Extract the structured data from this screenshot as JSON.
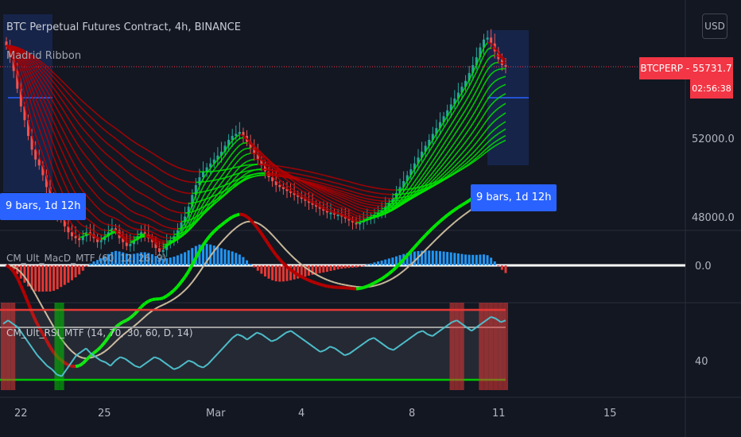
{
  "title": "BTC Perpetual Futures Contract, 4h, BINANCE",
  "indicator_main": "Madrid Ribbon",
  "indicator_macd": "CM_Ult_MacD_MTF (60, 12, 26, 9)",
  "indicator_rsi": "CM_Ult_RSI_MTF (14, 70, 30, 60, D, 14)",
  "currency_button": "USD",
  "price_tag": "BTCPERP - 55731.7",
  "countdown": "02:56:38",
  "measure_left": "9 bars, 1d 12h",
  "measure_right": "9 bars, 1d 12h",
  "colors": {
    "background": "#131722",
    "up": "#26a69a",
    "down": "#ef5350",
    "ribbon_up": "#00e600",
    "ribbon_down": "#b40000",
    "macd_hist": "#2196f3",
    "rsi_line": "#4dbdca",
    "price_tag": "#f23645",
    "measure": "#2962ff"
  },
  "chart_data": [
    {
      "type": "candlestick",
      "title": "BTC Perpetual Futures Contract, 4h, BINANCE",
      "x_ticks": [
        "22",
        "25",
        "Mar",
        "4",
        "8",
        "11",
        "15"
      ],
      "y_ticks": [
        "52000.0",
        "48000.0"
      ],
      "last_price": 55731.7,
      "close_approx": [
        56800,
        56200,
        55500,
        54600,
        53700,
        53000,
        52200,
        51500,
        51000,
        50700,
        50200,
        49600,
        48900,
        48500,
        48200,
        48000,
        47600,
        47300,
        47100,
        47000,
        46900,
        47100,
        47300,
        47200,
        47000,
        46800,
        46900,
        47100,
        47300,
        47500,
        47400,
        47000,
        46800,
        46600,
        46700,
        46900,
        47100,
        47300,
        47200,
        47000,
        46800,
        46500,
        46300,
        46400,
        46700,
        46900,
        47100,
        47400,
        47800,
        48100,
        48600,
        49200,
        49700,
        50100,
        50400,
        50600,
        50800,
        51000,
        51200,
        51400,
        51700,
        52000,
        52200,
        52300,
        52400,
        52200,
        51900,
        51600,
        51300,
        51000,
        50700,
        50400,
        50100,
        49900,
        49700,
        49600,
        49500,
        49400,
        49300,
        49200,
        49100,
        49000,
        48900,
        48800,
        48700,
        48600,
        48500,
        48400,
        48300,
        48300,
        48200,
        48200,
        48100,
        48000,
        47900,
        47800,
        47700,
        47800,
        47900,
        48000,
        48100,
        48200,
        48300,
        48400,
        48600,
        48800,
        49000,
        49300,
        49600,
        49900,
        50200,
        50500,
        50800,
        51100,
        51400,
        51700,
        52000,
        52300,
        52600,
        52900,
        53200,
        53500,
        53800,
        54100,
        54400,
        54700,
        55000,
        55400,
        55800,
        56200,
        56700,
        57100,
        57200,
        56900,
        56500,
        56100,
        55800,
        55731.7
      ]
    },
    {
      "type": "line",
      "title": "CM_Ult_MacD_MTF (60, 12, 26, 9)",
      "y_ticks": [
        "0.0"
      ]
    },
    {
      "type": "line",
      "title": "CM_Ult_RSI_MTF (14, 70, 30, 60, D, 14)",
      "y_ticks": [
        "40"
      ],
      "rsi_approx": [
        62,
        64,
        62,
        60,
        56,
        52,
        48,
        44,
        41,
        38,
        36,
        33,
        32,
        36,
        40,
        44,
        46,
        48,
        45,
        43,
        41,
        40,
        38,
        41,
        43,
        42,
        40,
        38,
        37,
        39,
        41,
        43,
        42,
        40,
        38,
        36,
        37,
        39,
        41,
        40,
        38,
        37,
        39,
        42,
        45,
        48,
        51,
        54,
        56,
        55,
        53,
        55,
        57,
        56,
        54,
        52,
        53,
        55,
        57,
        58,
        56,
        54,
        52,
        50,
        48,
        46,
        47,
        49,
        48,
        46,
        44,
        45,
        47,
        49,
        51,
        53,
        54,
        52,
        50,
        48,
        47,
        49,
        51,
        53,
        55,
        57,
        58,
        56,
        55,
        57,
        59,
        61,
        63,
        64,
        62,
        60,
        58,
        60,
        62,
        64,
        66,
        65,
        63,
        64
      ]
    }
  ]
}
